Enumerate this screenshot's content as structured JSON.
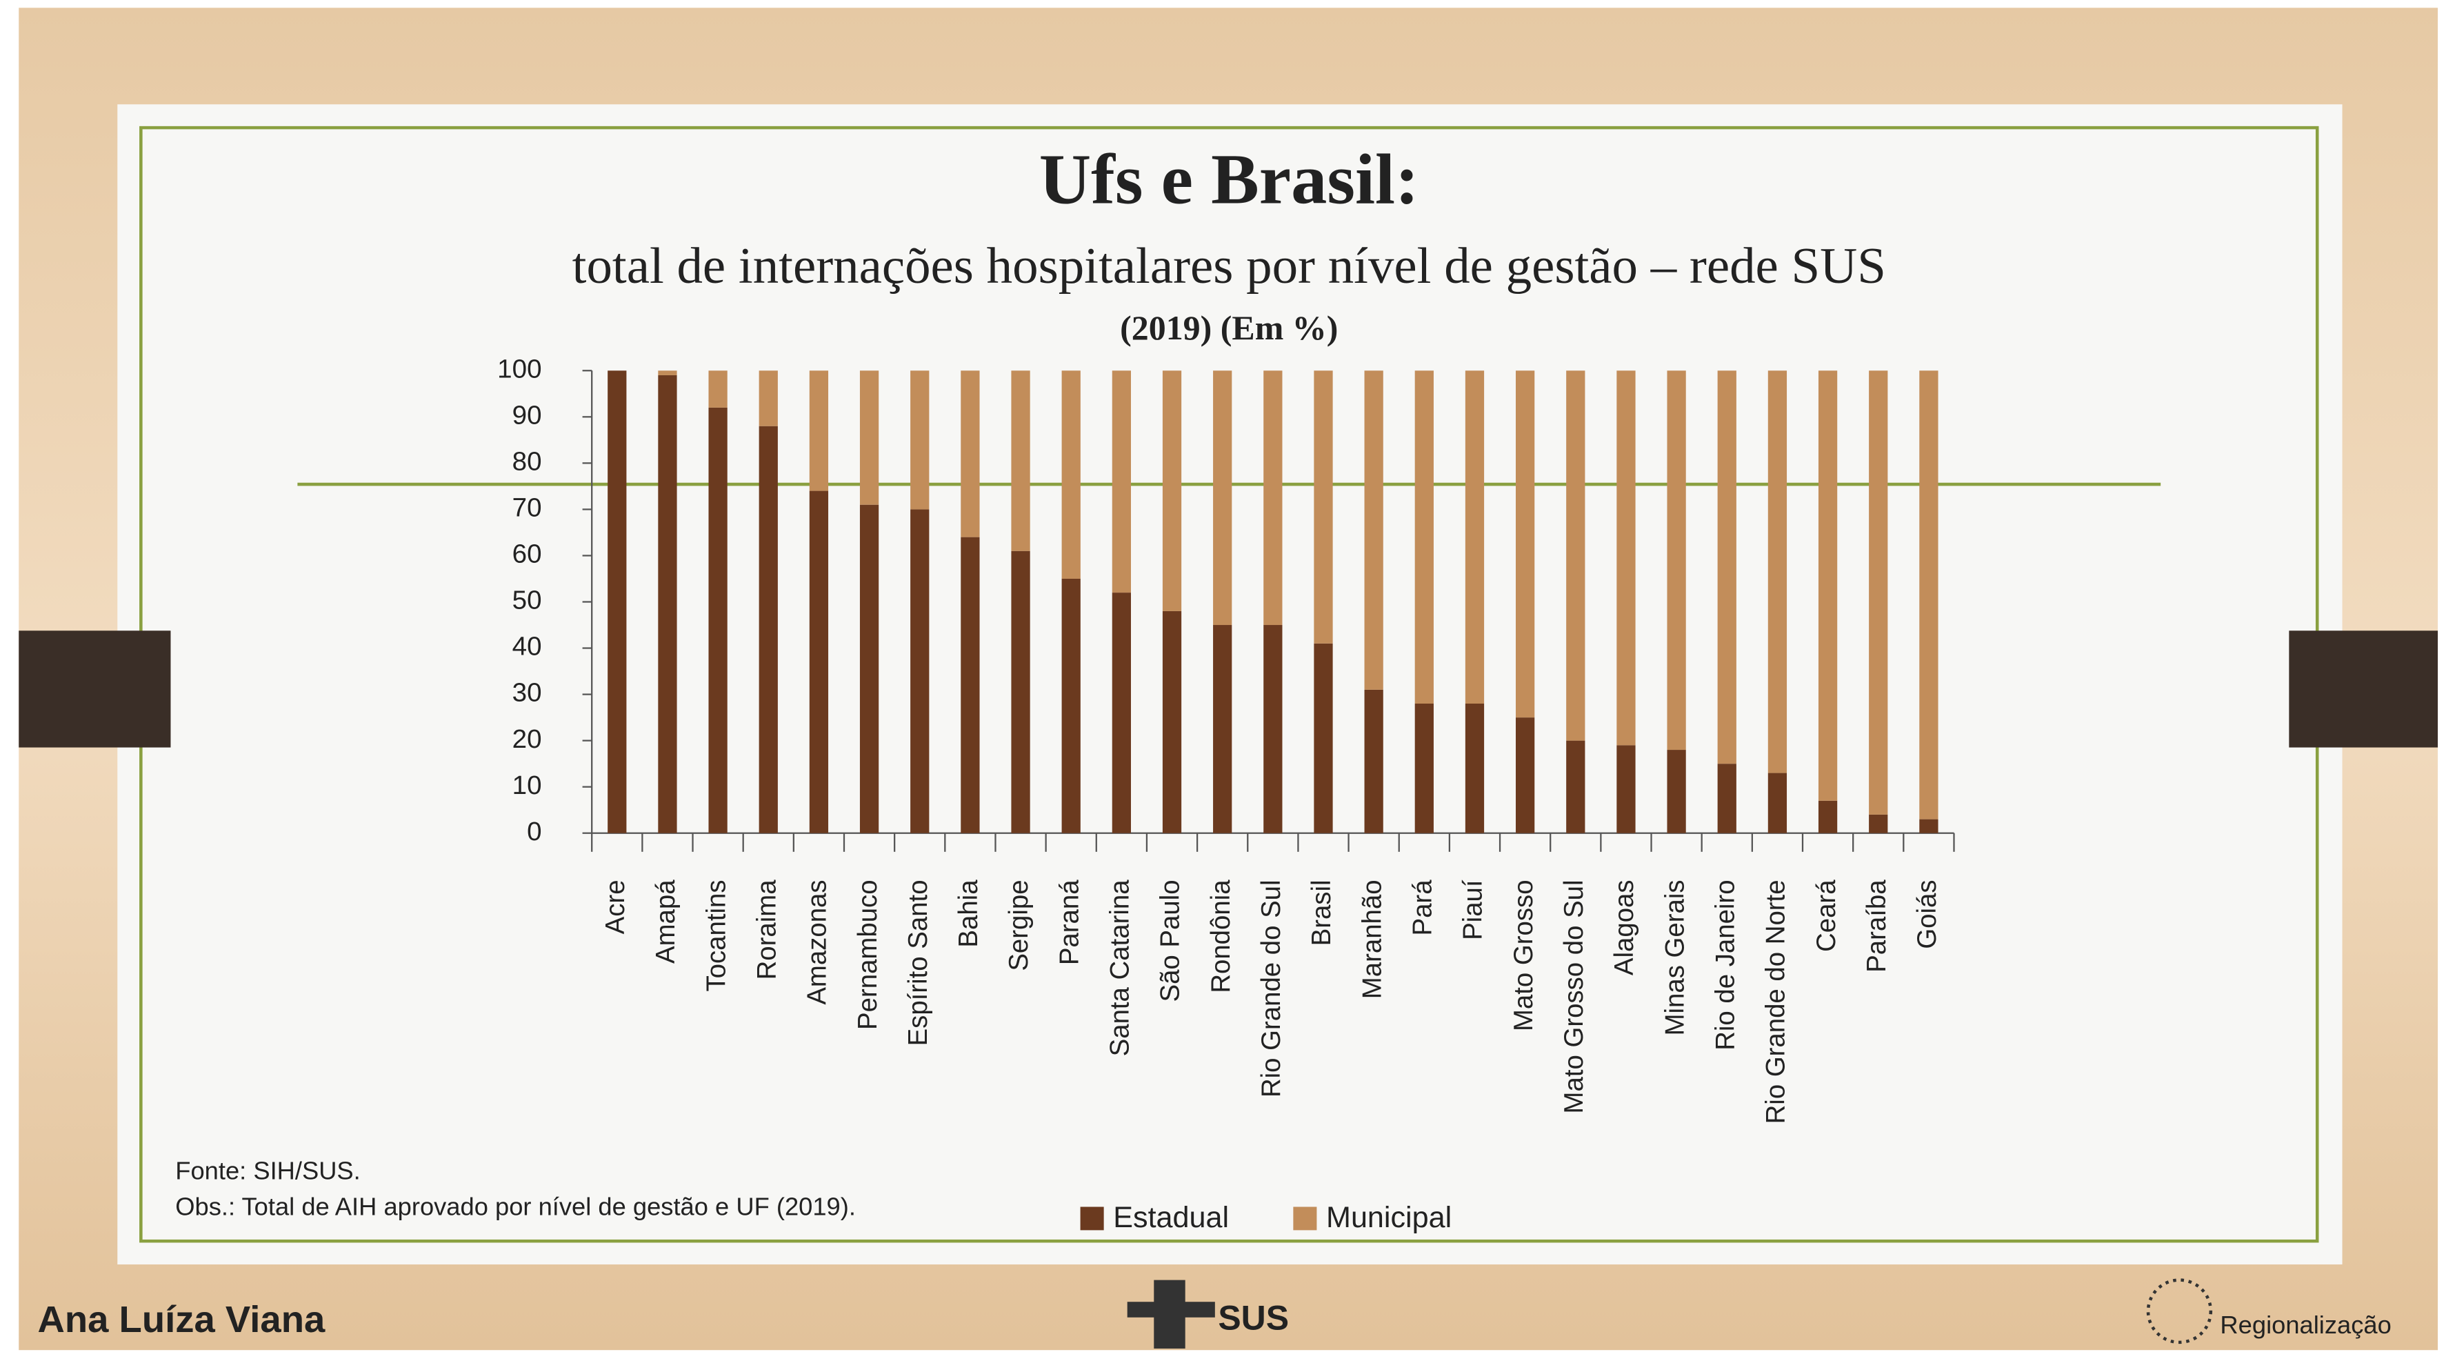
{
  "chart_data": {
    "type": "stacked_bar",
    "title": "Ufs e Brasil:",
    "subtitle": "total de internações hospitalares por nível de gestão – rede SUS",
    "period": "(2019) (Em %)",
    "categories": [
      "Acre",
      "Amapá",
      "Tocantins",
      "Roraima",
      "Amazonas",
      "Pernambuco",
      "Espírito Santo",
      "Bahia",
      "Sergipe",
      "Paraná",
      "Santa Catarina",
      "São Paulo",
      "Rondônia",
      "Rio Grande do Sul",
      "Brasil",
      "Maranhão",
      "Pará",
      "Piauí",
      "Mato Grosso",
      "Mato Grosso do Sul",
      "Alagoas",
      "Minas Gerais",
      "Rio de Janeiro",
      "Rio Grande do Norte",
      "Ceará",
      "Paraíba",
      "Goiás"
    ],
    "series": [
      {
        "name": "Estadual",
        "color": "#6b3a1f",
        "values": [
          100,
          99,
          92,
          88,
          74,
          71,
          70,
          64,
          61,
          55,
          52,
          48,
          45,
          45,
          41,
          31,
          28,
          28,
          25,
          20,
          19,
          18,
          15,
          13,
          7,
          4,
          3
        ]
      },
      {
        "name": "Municipal",
        "color": "#c28d5a",
        "values": [
          0,
          1,
          8,
          12,
          26,
          29,
          30,
          36,
          39,
          45,
          48,
          52,
          55,
          55,
          59,
          69,
          72,
          72,
          75,
          80,
          81,
          82,
          85,
          87,
          93,
          96,
          97
        ]
      }
    ],
    "ylim": [
      0,
      100
    ],
    "yticks": [
      0,
      10,
      20,
      30,
      40,
      50,
      60,
      70,
      80,
      90,
      100
    ],
    "legend": "bottom",
    "grid": false
  },
  "slide": {
    "source": "Fonte: SIH/SUS.",
    "note": "Obs.: Total de AIH aprovado por nível de gestão e UF (2019).",
    "author": "Ana Luíza Viana",
    "logo": "SUS",
    "brand": "Regionalização"
  }
}
